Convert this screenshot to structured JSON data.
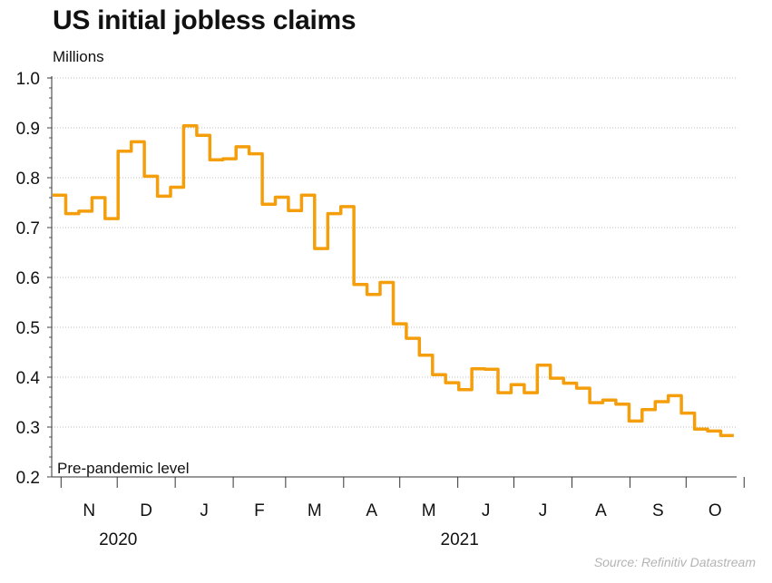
{
  "chart_data": {
    "type": "line",
    "title": "US initial jobless claims",
    "ylabel": "Millions",
    "source": "Source: Refinitiv Datastream",
    "ylim": [
      0.2,
      1.0
    ],
    "yticks": [
      "0.2",
      "0.3",
      "0.4",
      "0.5",
      "0.6",
      "0.7",
      "0.8",
      "0.9",
      "1.0"
    ],
    "x_month_labels": [
      "N",
      "D",
      "J",
      "F",
      "M",
      "A",
      "M",
      "J",
      "J",
      "A",
      "S",
      "O"
    ],
    "x_year_labels": [
      "2020",
      "2021"
    ],
    "grid": true,
    "reference_line": {
      "label": "Pre-pandemic level",
      "value": 0.2
    },
    "line_color": "#f59e0b",
    "series": [
      {
        "x": [
          "2020-10-31",
          "2020-11-07",
          "2020-11-14",
          "2020-11-21",
          "2020-11-28",
          "2020-12-05",
          "2020-12-12",
          "2020-12-19",
          "2020-12-26",
          "2021-01-02",
          "2021-01-09",
          "2021-01-16",
          "2021-01-23",
          "2021-01-30",
          "2021-02-06",
          "2021-02-13",
          "2021-02-20",
          "2021-02-27",
          "2021-03-06",
          "2021-03-13",
          "2021-03-20",
          "2021-03-27",
          "2021-04-03",
          "2021-04-10",
          "2021-04-17",
          "2021-04-24",
          "2021-05-01",
          "2021-05-08",
          "2021-05-15",
          "2021-05-22",
          "2021-05-29",
          "2021-06-05",
          "2021-06-12",
          "2021-06-19",
          "2021-06-26",
          "2021-07-03",
          "2021-07-10",
          "2021-07-17",
          "2021-07-24",
          "2021-07-31",
          "2021-08-07",
          "2021-08-14",
          "2021-08-21",
          "2021-08-28",
          "2021-09-04",
          "2021-09-11",
          "2021-09-18",
          "2021-09-25",
          "2021-10-02",
          "2021-10-09",
          "2021-10-16",
          "2021-10-23"
        ],
        "values": [
          0.765,
          0.728,
          0.733,
          0.76,
          0.718,
          0.853,
          0.872,
          0.803,
          0.763,
          0.781,
          0.904,
          0.885,
          0.836,
          0.838,
          0.862,
          0.848,
          0.747,
          0.761,
          0.734,
          0.765,
          0.658,
          0.728,
          0.742,
          0.586,
          0.566,
          0.59,
          0.507,
          0.478,
          0.444,
          0.405,
          0.389,
          0.375,
          0.417,
          0.416,
          0.369,
          0.385,
          0.369,
          0.424,
          0.398,
          0.388,
          0.378,
          0.349,
          0.354,
          0.346,
          0.312,
          0.335,
          0.351,
          0.363,
          0.328,
          0.296,
          0.292,
          0.283
        ]
      }
    ]
  }
}
